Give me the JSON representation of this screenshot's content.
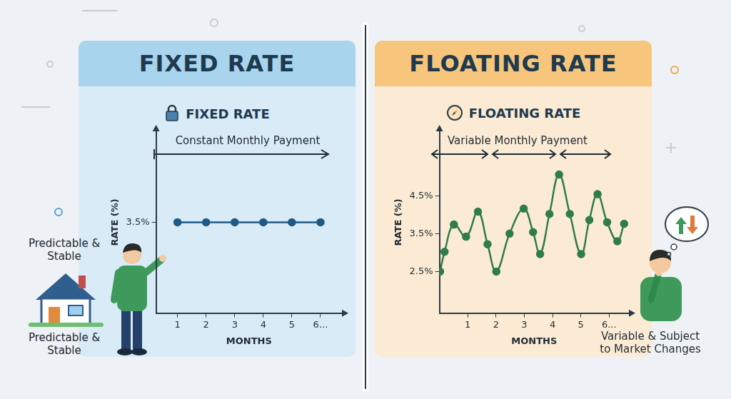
{
  "chart_data": [
    {
      "type": "line",
      "title": "FIXED RATE",
      "subtitle": "FIXED RATE",
      "annotations": [
        "Constant Monthly Payment",
        "Predictable & Stable",
        "Predictable & Stable"
      ],
      "xlabel": "MONTHS",
      "ylabel": "RATE (%)",
      "x": [
        1,
        2,
        3,
        4,
        5,
        6
      ],
      "values": [
        3.5,
        3.5,
        3.5,
        3.5,
        3.5,
        3.5
      ],
      "color": "#1f5a85",
      "marker": "circle",
      "line_style": "solid",
      "xlim": [
        0.25,
        6.75
      ],
      "xticks": [
        1,
        2,
        3,
        4,
        5,
        {
          "value": 6,
          "label": "6..."
        }
      ],
      "ylim": [
        2.5,
        4.5
      ],
      "yticks": [
        {
          "value": 3.5,
          "label": "3.5%"
        }
      ],
      "grid": false
    },
    {
      "type": "line",
      "title": "FLOATING RATE",
      "subtitle": "FLOATING RATE",
      "annotations": [
        "Variable Monthly Payment",
        "Variable & Subject to Market Changes"
      ],
      "xlabel": "MONTHS",
      "ylabel": "RATE (%)",
      "x": [
        0.02,
        0.18,
        0.51,
        0.94,
        1.36,
        1.7,
        2.01,
        2.48,
        2.98,
        3.31,
        3.56,
        3.89,
        4.23,
        4.61,
        5.01,
        5.3,
        5.59,
        5.93,
        6.29,
        6.53
      ],
      "values": [
        2.5,
        3.02,
        3.74,
        3.42,
        4.08,
        3.22,
        2.5,
        3.5,
        4.16,
        3.54,
        2.96,
        4.02,
        5.06,
        4.02,
        2.96,
        3.86,
        4.54,
        3.8,
        3.3,
        3.76
      ],
      "color": "#2e7d4a",
      "marker": "circle",
      "line_style": "solid",
      "xlim": [
        0,
        6.7
      ],
      "xticks": [
        1,
        2,
        3,
        4,
        5,
        {
          "value": 6,
          "label": "6..."
        }
      ],
      "ylim": [
        1.4,
        6.2
      ],
      "yticks": [
        {
          "value": 2.5,
          "label": "2.5%"
        },
        {
          "value": 3.5,
          "label": "3.5%"
        },
        {
          "value": 4.5,
          "label": "4.5%"
        }
      ],
      "grid": false
    }
  ]
}
